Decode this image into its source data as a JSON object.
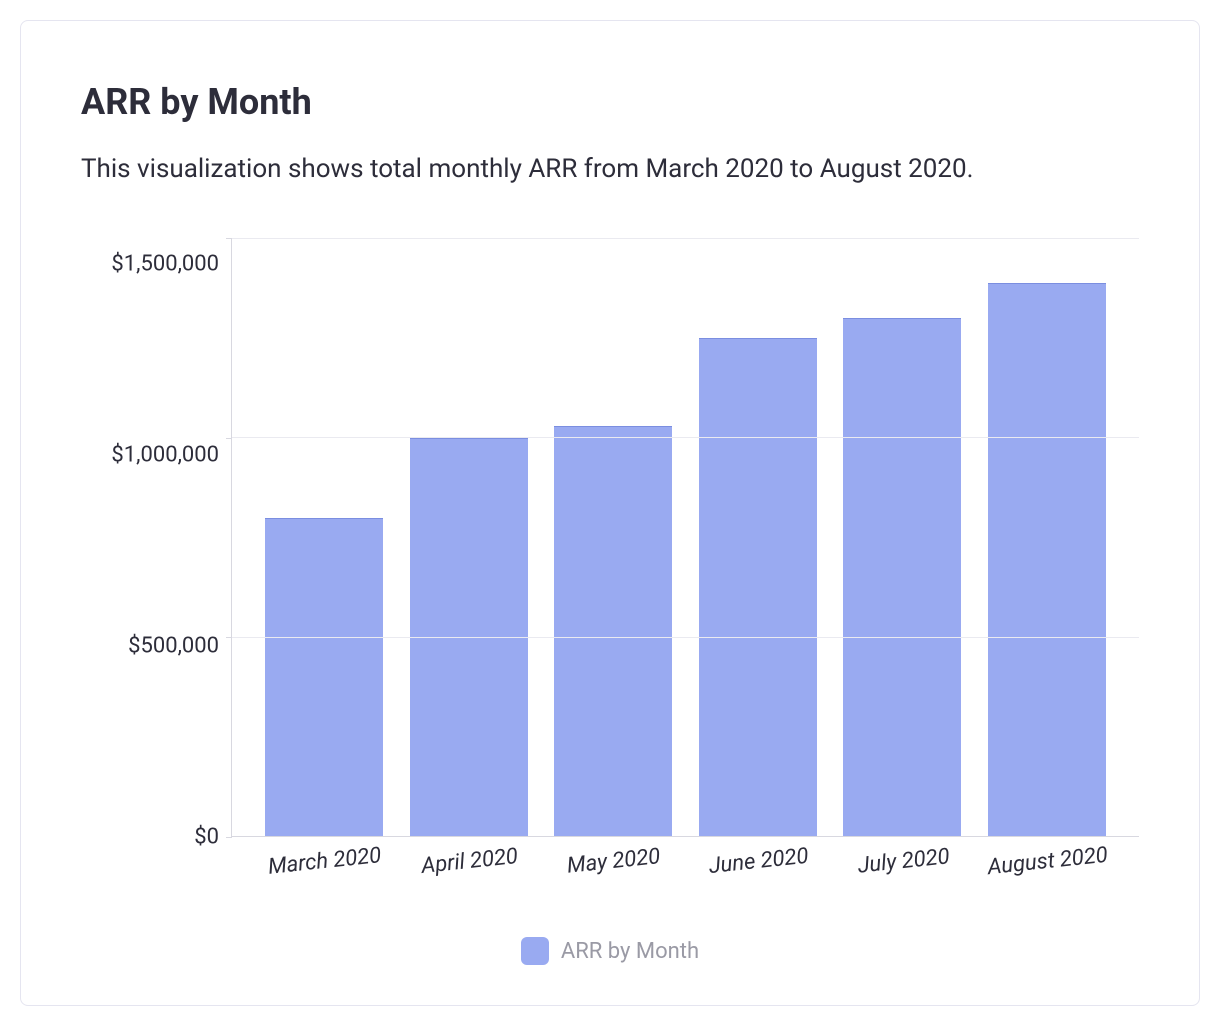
{
  "card": {
    "title": "ARR by Month",
    "description": "This visualization shows total monthly ARR from March 2020 to August 2020."
  },
  "chart": {
    "type": "bar",
    "categories": [
      "March 2020",
      "April 2020",
      "May 2020",
      "June 2020",
      "July 2020",
      "August 2020"
    ],
    "values": [
      800000,
      1000000,
      1030000,
      1250000,
      1300000,
      1390000
    ],
    "bar_color": "#99aaf1",
    "bar_border_top_color": "#7b8ee0",
    "bar_width_ratio": 0.82,
    "ylim": [
      0,
      1500000
    ],
    "y_ticks": [
      {
        "value": 0,
        "label": "$0"
      },
      {
        "value": 500000,
        "label": "$500,000"
      },
      {
        "value": 1000000,
        "label": "$1,000,000"
      },
      {
        "value": 1500000,
        "label": "$1,500,000"
      }
    ],
    "background_color": "#ffffff",
    "grid_color": "#eaeaf0",
    "axis_line_color": "#d8d8e0",
    "title_color": "#2d2d3a",
    "text_color": "#2d2d3a",
    "x_label_rotation_deg": -6,
    "x_label_italic": true,
    "title_fontsize": 36,
    "description_fontsize": 26,
    "tick_fontsize": 22,
    "legend": {
      "label": "ARR by Month",
      "swatch_color": "#99aaf1",
      "text_color": "#9a9aa5",
      "fontsize": 22
    }
  }
}
